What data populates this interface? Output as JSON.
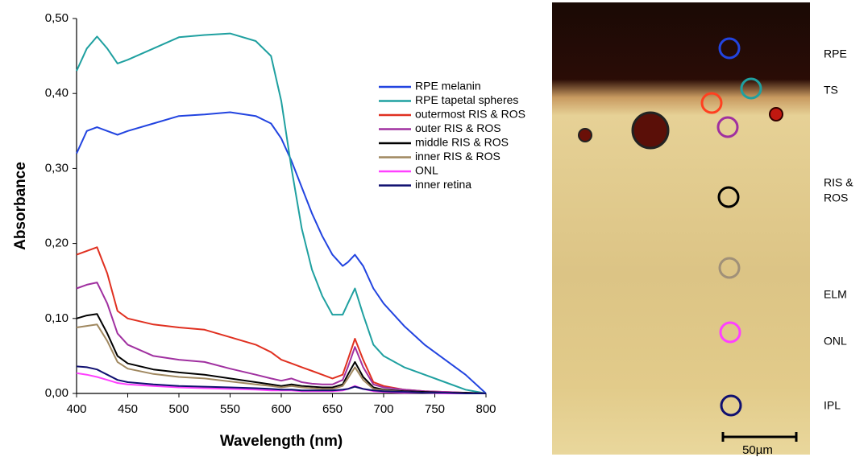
{
  "chart_data": {
    "type": "line",
    "x_label": "Wavelength (nm)",
    "y_label": "Absorbance",
    "x": [
      400,
      410,
      420,
      430,
      440,
      450,
      475,
      500,
      525,
      550,
      575,
      590,
      600,
      610,
      620,
      630,
      640,
      650,
      660,
      665,
      672,
      680,
      690,
      700,
      720,
      740,
      760,
      780,
      800
    ],
    "xlim": [
      400,
      800
    ],
    "xticks": [
      400,
      450,
      500,
      550,
      600,
      650,
      700,
      750,
      800
    ],
    "ylim": [
      0,
      0.5
    ],
    "yticks": [
      {
        "value": 0,
        "label": "0,00"
      },
      {
        "value": 0.1,
        "label": "0,10"
      },
      {
        "value": 0.2,
        "label": "0,20"
      },
      {
        "value": 0.3,
        "label": "0,30"
      },
      {
        "value": 0.4,
        "label": "0,40"
      },
      {
        "value": 0.5,
        "label": "0,50"
      }
    ],
    "grid": false,
    "legend": "upper right",
    "series": [
      {
        "name": "RPE melanin",
        "color": "#2244e0",
        "values": [
          0.32,
          0.35,
          0.355,
          0.35,
          0.345,
          0.35,
          0.36,
          0.37,
          0.372,
          0.375,
          0.37,
          0.36,
          0.34,
          0.31,
          0.275,
          0.24,
          0.21,
          0.185,
          0.17,
          0.175,
          0.185,
          0.17,
          0.14,
          0.12,
          0.09,
          0.065,
          0.045,
          0.025,
          0.0
        ]
      },
      {
        "name": "RPE tapetal spheres",
        "color": "#1fa0a0",
        "values": [
          0.43,
          0.46,
          0.476,
          0.46,
          0.44,
          0.445,
          0.46,
          0.475,
          0.478,
          0.48,
          0.47,
          0.45,
          0.39,
          0.3,
          0.22,
          0.165,
          0.13,
          0.105,
          0.105,
          0.12,
          0.14,
          0.105,
          0.065,
          0.05,
          0.035,
          0.025,
          0.015,
          0.005,
          0.0
        ]
      },
      {
        "name": "outermost RIS & ROS",
        "color": "#e03020",
        "values": [
          0.185,
          0.19,
          0.195,
          0.16,
          0.11,
          0.1,
          0.092,
          0.088,
          0.085,
          0.075,
          0.065,
          0.055,
          0.045,
          0.04,
          0.035,
          0.03,
          0.025,
          0.02,
          0.025,
          0.045,
          0.073,
          0.045,
          0.015,
          0.01,
          0.005,
          0.003,
          0.002,
          0.001,
          0.0
        ]
      },
      {
        "name": "outer RIS & ROS",
        "color": "#a030a0",
        "values": [
          0.14,
          0.145,
          0.148,
          0.12,
          0.08,
          0.065,
          0.05,
          0.045,
          0.042,
          0.033,
          0.025,
          0.02,
          0.017,
          0.02,
          0.015,
          0.013,
          0.012,
          0.012,
          0.018,
          0.035,
          0.062,
          0.035,
          0.012,
          0.008,
          0.005,
          0.003,
          0.002,
          0.001,
          0.0
        ]
      },
      {
        "name": "middle RIS & ROS",
        "color": "#000000",
        "values": [
          0.1,
          0.104,
          0.106,
          0.08,
          0.05,
          0.04,
          0.032,
          0.028,
          0.025,
          0.02,
          0.015,
          0.012,
          0.01,
          0.012,
          0.01,
          0.009,
          0.008,
          0.008,
          0.012,
          0.025,
          0.042,
          0.022,
          0.008,
          0.005,
          0.003,
          0.002,
          0.001,
          0.001,
          0.0
        ]
      },
      {
        "name": "inner RIS & ROS",
        "color": "#a08860",
        "values": [
          0.088,
          0.09,
          0.092,
          0.07,
          0.042,
          0.033,
          0.026,
          0.022,
          0.02,
          0.016,
          0.012,
          0.01,
          0.008,
          0.01,
          0.008,
          0.007,
          0.006,
          0.006,
          0.01,
          0.02,
          0.035,
          0.018,
          0.006,
          0.004,
          0.002,
          0.001,
          0.001,
          0.0,
          0.0
        ]
      },
      {
        "name": "ONL",
        "color": "#ff40ff",
        "values": [
          0.027,
          0.025,
          0.022,
          0.018,
          0.014,
          0.012,
          0.01,
          0.008,
          0.007,
          0.006,
          0.005,
          0.004,
          0.004,
          0.004,
          0.003,
          0.003,
          0.003,
          0.003,
          0.004,
          0.006,
          0.01,
          0.006,
          0.003,
          0.002,
          0.001,
          0.001,
          0.0,
          0.0,
          0.0
        ]
      },
      {
        "name": "inner retina",
        "color": "#101070",
        "values": [
          0.036,
          0.035,
          0.032,
          0.025,
          0.018,
          0.015,
          0.012,
          0.01,
          0.009,
          0.008,
          0.007,
          0.006,
          0.005,
          0.005,
          0.004,
          0.004,
          0.004,
          0.004,
          0.005,
          0.006,
          0.009,
          0.006,
          0.004,
          0.003,
          0.002,
          0.001,
          0.001,
          0.0,
          0.0
        ]
      }
    ]
  },
  "micrograph": {
    "layer_labels": [
      "RPE",
      "TS",
      "RIS &",
      "ROS",
      "ELM",
      "ONL",
      "IPL"
    ],
    "scale_bar": "50µm"
  }
}
